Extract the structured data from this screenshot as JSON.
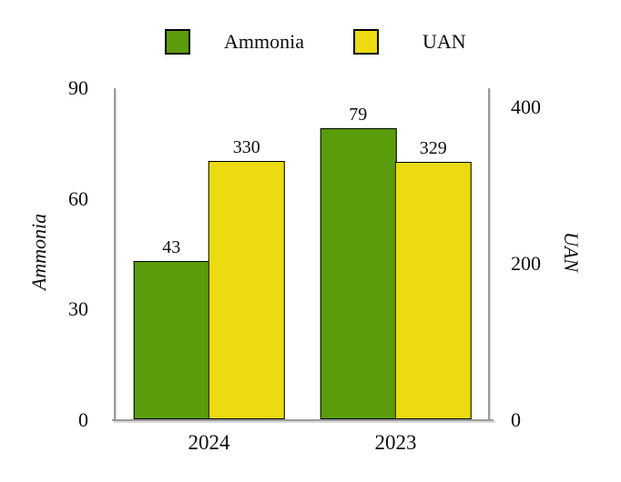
{
  "legend": {
    "position": "top",
    "items": [
      {
        "label": "Ammonia",
        "color": "#5a9c0b"
      },
      {
        "label": "UAN",
        "color": "#ebdb10"
      }
    ]
  },
  "chart_data": {
    "type": "bar",
    "categories": [
      "2024",
      "2023"
    ],
    "series": [
      {
        "name": "Ammonia",
        "axis": "left",
        "color": "#5a9c0b",
        "values": [
          43,
          79
        ]
      },
      {
        "name": "UAN",
        "axis": "right",
        "color": "#ebdb10",
        "values": [
          330,
          329
        ]
      }
    ],
    "left_axis": {
      "label": "Ammonia",
      "ticks": [
        0,
        30,
        60,
        90
      ],
      "min": 0,
      "max": 90
    },
    "right_axis": {
      "label": "UAN",
      "ticks": [
        0,
        200,
        400
      ],
      "min": 0,
      "max": 424
    },
    "data_labels": true,
    "grid": false,
    "legend_position": "top",
    "bar_outline_color": "#000000",
    "axis_line_color": "#9b9b9b"
  }
}
